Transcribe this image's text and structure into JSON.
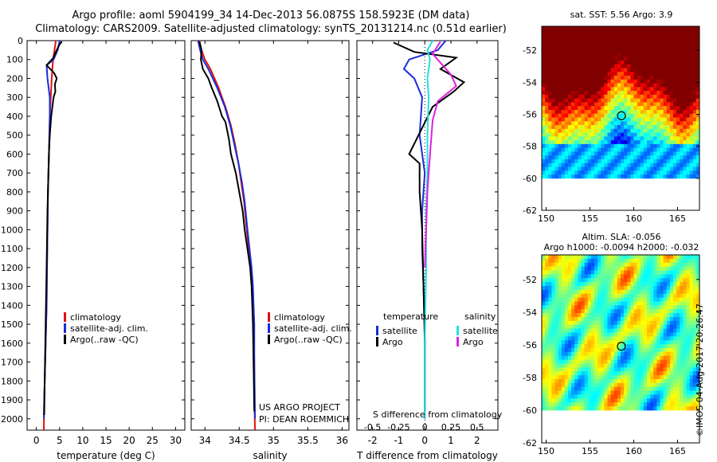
{
  "header": {
    "line1": "Argo profile: aoml 5904199_34 14-Dec-2013 56.0875S 158.5923E (DM data)",
    "line2": "Climatology: CARS2009. Satellite-adjusted climatology: synTS_20131214.nc (0.51d earlier)"
  },
  "colors": {
    "climatology": "#e01010",
    "satellite": "#1a2ed8",
    "argo": "#000000",
    "sal_satellite": "#22e0e0",
    "sal_argo": "#e020e0"
  },
  "depth_axis": {
    "ticks": [
      0,
      100,
      200,
      300,
      400,
      500,
      600,
      700,
      800,
      900,
      1000,
      1100,
      1200,
      1300,
      1400,
      1500,
      1600,
      1700,
      1800,
      1900,
      2000
    ],
    "range": [
      0,
      2060
    ]
  },
  "chart_data": [
    {
      "type": "line",
      "id": "temperature",
      "xlabel": "temperature (deg C)",
      "xlim": [
        -2,
        32
      ],
      "xticks": [
        0,
        5,
        10,
        15,
        20,
        25,
        30
      ],
      "legend": [
        "climatology",
        "satellite-adj. clim.",
        "Argo(..raw -QC)"
      ],
      "series": [
        {
          "name": "climatology",
          "x": [
            4.2,
            3.9,
            3.6,
            3.3,
            3.1,
            2.9,
            2.8,
            2.7,
            2.6,
            2.5,
            2.4,
            2.3,
            2.2,
            2.1,
            2.0,
            1.9,
            1.8,
            1.7,
            1.6
          ],
          "y": [
            0,
            50,
            100,
            200,
            300,
            400,
            500,
            600,
            700,
            800,
            1000,
            1200,
            1400,
            1500,
            1600,
            1700,
            1800,
            1900,
            2060
          ]
        },
        {
          "name": "satellite-adj. clim.",
          "x": [
            5.0,
            4.6,
            3.7,
            2.2,
            2.4,
            2.9,
            2.9,
            2.7,
            2.6,
            2.5,
            2.4,
            2.3,
            2.2,
            2.1,
            2.0,
            1.9,
            1.8,
            1.7,
            1.6
          ],
          "y": [
            0,
            50,
            100,
            130,
            200,
            300,
            400,
            600,
            700,
            800,
            1000,
            1200,
            1400,
            1500,
            1600,
            1700,
            1800,
            1900,
            2000
          ]
        },
        {
          "name": "Argo(..raw -QC)",
          "x": [
            5.5,
            5.0,
            4.6,
            4.2,
            3.7,
            2.2,
            3.8,
            4.4,
            4.0,
            4.1,
            3.7,
            3.2,
            2.9,
            2.7,
            2.6,
            2.4,
            2.2,
            2.0,
            1.8,
            1.7
          ],
          "y": [
            5,
            20,
            40,
            60,
            90,
            130,
            170,
            200,
            230,
            270,
            300,
            400,
            500,
            600,
            700,
            900,
            1200,
            1500,
            1800,
            1980
          ]
        }
      ]
    },
    {
      "type": "line",
      "id": "salinity",
      "xlabel": "salinity",
      "xlim": [
        33.8,
        36.1
      ],
      "xticks": [
        34,
        34.5,
        35,
        35.5,
        36
      ],
      "legend": [
        "climatology",
        "satellite-adj. clim.",
        "Argo(..raw -QC)"
      ],
      "series": [
        {
          "name": "climatology",
          "x": [
            33.92,
            33.95,
            34.0,
            34.08,
            34.2,
            34.3,
            34.38,
            34.44,
            34.49,
            34.53,
            34.57,
            34.61,
            34.64,
            34.67,
            34.69,
            34.7,
            34.71,
            34.72,
            34.72,
            34.73
          ],
          "y": [
            0,
            50,
            100,
            150,
            250,
            350,
            450,
            550,
            650,
            750,
            850,
            1000,
            1100,
            1200,
            1300,
            1400,
            1500,
            1700,
            1900,
            2060
          ]
        },
        {
          "name": "satellite-adj. clim.",
          "x": [
            33.9,
            33.93,
            33.97,
            34.05,
            34.18,
            34.29,
            34.37,
            34.43,
            34.49,
            34.54,
            34.58,
            34.62,
            34.65,
            34.68,
            34.7,
            34.71,
            34.72,
            34.72,
            34.73
          ],
          "y": [
            0,
            50,
            100,
            150,
            250,
            350,
            450,
            550,
            650,
            750,
            850,
            1000,
            1100,
            1200,
            1300,
            1400,
            1500,
            1700,
            2000
          ]
        },
        {
          "name": "Argo(..raw -QC)",
          "x": [
            33.92,
            33.95,
            33.94,
            33.97,
            34.05,
            34.1,
            34.18,
            34.25,
            34.3,
            34.35,
            34.38,
            34.45,
            34.5,
            34.55,
            34.58,
            34.62,
            34.66,
            34.68,
            34.7,
            34.72
          ],
          "y": [
            5,
            50,
            100,
            150,
            200,
            250,
            320,
            400,
            430,
            520,
            600,
            700,
            800,
            900,
            1000,
            1100,
            1200,
            1300,
            1500,
            1960
          ]
        }
      ]
    },
    {
      "type": "line",
      "id": "difference",
      "xlabel": "T difference from climatology",
      "xlabel_top": "S difference from climatology",
      "xlim": [
        -2.6,
        2.8
      ],
      "xticks": [
        -2,
        -1,
        0,
        1,
        2
      ],
      "xticks_top": [
        "-0.5",
        "-0.25",
        "0",
        "0.25",
        "0.5"
      ],
      "legend_temperature": "temperature",
      "legend_salinity": "salinity",
      "legend_items": [
        "satellite",
        "Argo",
        "satellite",
        "Argo"
      ],
      "series": [
        {
          "name": "temperature satellite",
          "x": [
            0.8,
            0.5,
            -0.6,
            -0.8,
            -0.4,
            -0.1,
            -0.2,
            0.0,
            -0.1,
            -0.1,
            -0.05,
            0.0,
            0.0,
            0.0
          ],
          "y": [
            0,
            50,
            100,
            150,
            200,
            300,
            500,
            700,
            900,
            1100,
            1300,
            1500,
            1700,
            2000
          ]
        },
        {
          "name": "temperature Argo",
          "x": [
            -1.2,
            -0.4,
            1.2,
            0.6,
            1.5,
            1.1,
            0.3,
            -0.6,
            -0.2,
            -0.2,
            -0.1,
            -0.05,
            0.0,
            0.0
          ],
          "y": [
            10,
            60,
            90,
            150,
            220,
            270,
            350,
            600,
            650,
            800,
            1000,
            1300,
            1600,
            1960
          ]
        },
        {
          "name": "salinity satellite",
          "x": [
            0.3,
            0.1,
            0.2,
            0.1,
            0.15,
            0.1,
            0.1,
            0.05,
            0.05,
            0.0,
            0.0
          ],
          "y": [
            0,
            50,
            100,
            200,
            300,
            500,
            700,
            900,
            1200,
            1600,
            2000
          ]
        },
        {
          "name": "salinity Argo",
          "x": [
            0.6,
            0.3,
            1.0,
            1.2,
            0.5,
            0.3,
            0.2,
            0.1,
            0.05,
            0.0
          ],
          "y": [
            5,
            70,
            180,
            240,
            320,
            420,
            600,
            800,
            1000,
            1200
          ]
        }
      ]
    },
    {
      "type": "heatmap",
      "id": "sst-map",
      "title": "sat. SST: 5.56 Argo: 3.9",
      "xlim": [
        149.5,
        167.5
      ],
      "ylim": [
        -62,
        -50.5
      ],
      "xticks": [
        150,
        155,
        160,
        165
      ],
      "yticks": [
        -52,
        -54,
        -56,
        -58,
        -60,
        -62
      ],
      "float_position": [
        158.59,
        -56.09
      ]
    },
    {
      "type": "heatmap",
      "id": "sla-map",
      "title": "Altim. SLA: -0.056",
      "subtitle": "Argo h1000: -0.0094 h2000: -0.032",
      "xlim": [
        149.5,
        167.5
      ],
      "ylim": [
        -62,
        -50.5
      ],
      "xticks": [
        150,
        155,
        160,
        165
      ],
      "yticks": [
        -52,
        -54,
        -56,
        -58,
        -60,
        -62
      ],
      "float_position": [
        158.59,
        -56.09
      ]
    }
  ],
  "annotations": {
    "project": "US ARGO PROJECT",
    "pi": "PI: DEAN ROEMMICH",
    "stamp": "©IMOS 04-Aug-2017 20:26:47"
  }
}
